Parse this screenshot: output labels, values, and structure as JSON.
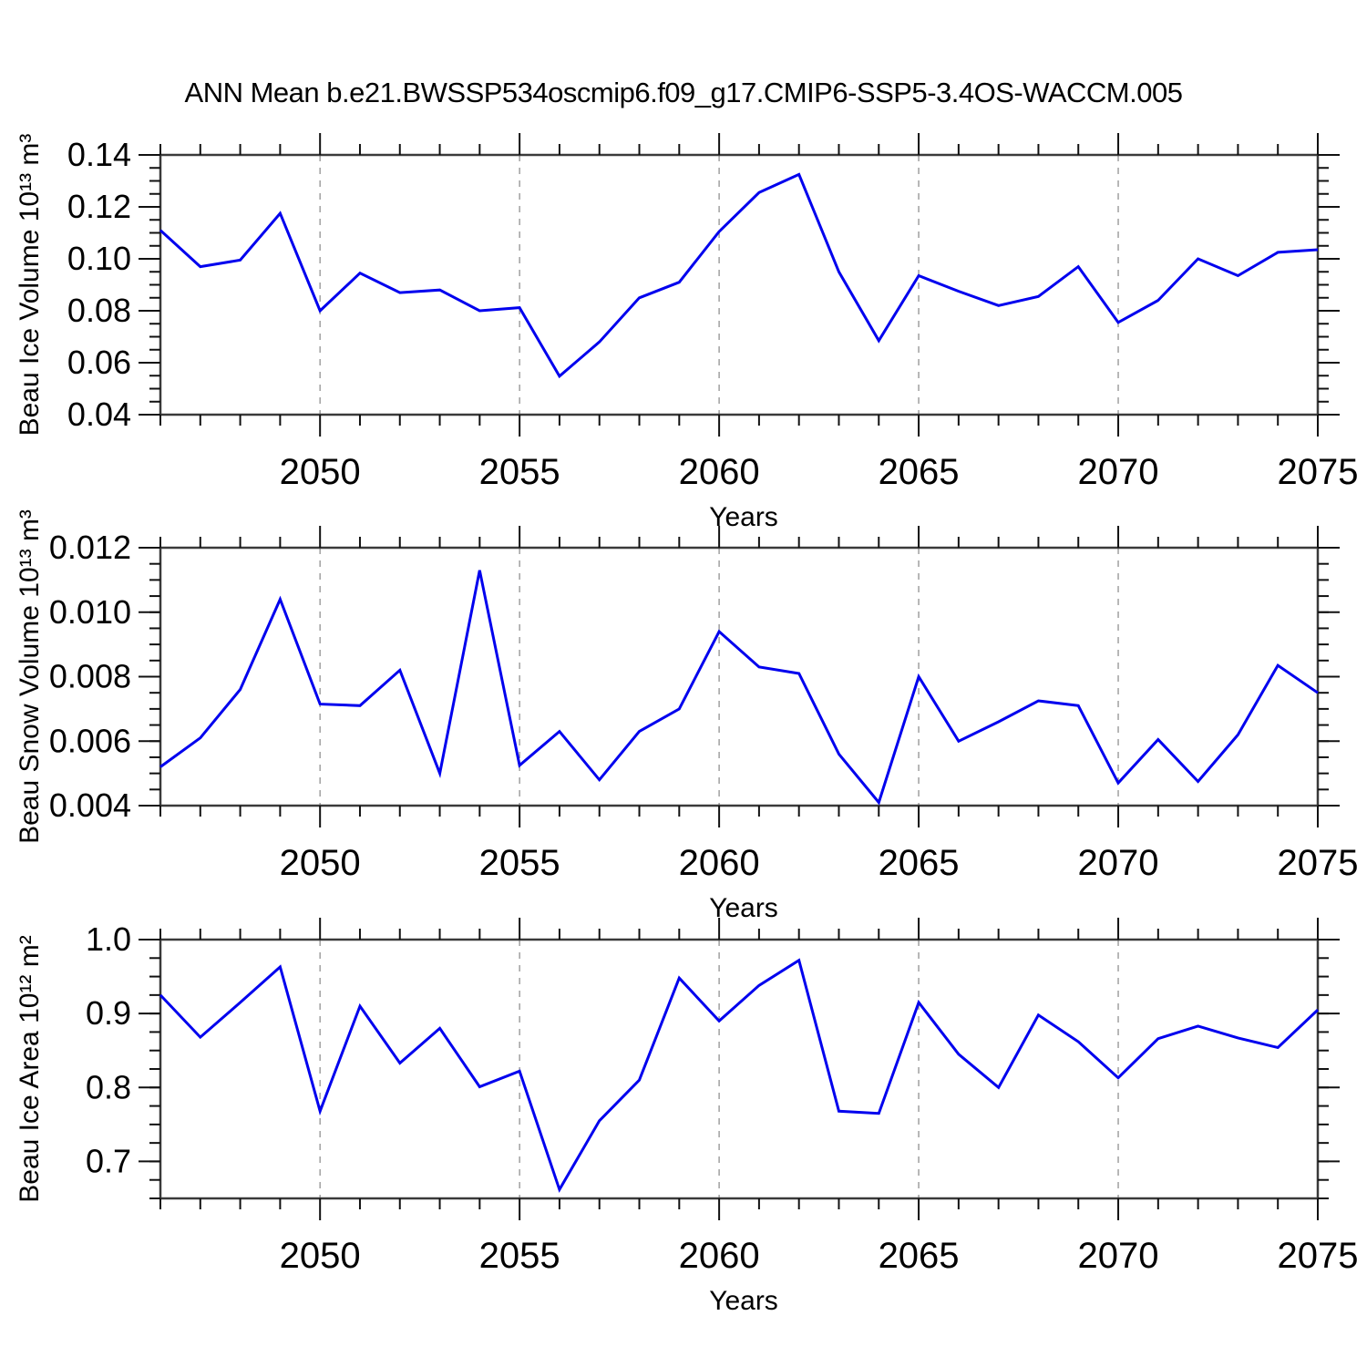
{
  "title": "ANN Mean b.e21.BWSSP534oscmip6.f09_g17.CMIP6-SSP5-3.4OS-WACCM.005",
  "chart_data": {
    "type": "line",
    "legend": "none",
    "grid": "vertical-dashed-at-major-x",
    "line_color": "#0000ee",
    "grid_color": "#999999",
    "axis_color": "#3a3a3a",
    "tick_color": "#111111",
    "text_color": "#000000",
    "years": [
      2046,
      2047,
      2048,
      2049,
      2050,
      2051,
      2052,
      2053,
      2054,
      2055,
      2056,
      2057,
      2058,
      2059,
      2060,
      2061,
      2062,
      2063,
      2064,
      2065,
      2066,
      2067,
      2068,
      2069,
      2070,
      2071,
      2072,
      2073,
      2074,
      2075
    ],
    "xticks": {
      "major": [
        2050,
        2055,
        2060,
        2065,
        2070,
        2075
      ],
      "labels": [
        "2050",
        "2055",
        "2060",
        "2065",
        "2070",
        "2075"
      ],
      "minor_step": 1
    },
    "grid_x": [
      2050,
      2055,
      2060,
      2065,
      2070
    ],
    "panels": [
      {
        "name": "beau-ice-volume",
        "ylabel": "Beau Ice Volume 10¹³ m³",
        "xlabel": "Years",
        "xlim": [
          2046,
          2075
        ],
        "ylim": [
          0.04,
          0.14
        ],
        "yticks": {
          "major": [
            0.04,
            0.06,
            0.08,
            0.1,
            0.12,
            0.14
          ],
          "labels": [
            "0.04",
            "0.06",
            "0.08",
            "0.10",
            "0.12",
            "0.14"
          ],
          "minor_step": 0.005
        },
        "values": [
          0.111,
          0.097,
          0.0995,
          0.1175,
          0.08,
          0.0945,
          0.087,
          0.088,
          0.08,
          0.0812,
          0.0548,
          0.068,
          0.085,
          0.091,
          0.1105,
          0.1255,
          0.1325,
          0.095,
          0.0685,
          0.0935,
          0.0875,
          0.082,
          0.0855,
          0.097,
          0.0755,
          0.084,
          0.1,
          0.0935,
          0.1025,
          0.1035
        ]
      },
      {
        "name": "beau-snow-volume",
        "ylabel": "Beau Snow Volume 10¹³ m³",
        "xlabel": "Years",
        "xlim": [
          2046,
          2075
        ],
        "ylim": [
          0.004,
          0.012
        ],
        "yticks": {
          "major": [
            0.004,
            0.006,
            0.008,
            0.01,
            0.012
          ],
          "labels": [
            "0.004",
            "0.006",
            "0.008",
            "0.010",
            "0.012"
          ],
          "minor_step": 0.0005
        },
        "values": [
          0.0052,
          0.0061,
          0.0076,
          0.0104,
          0.00715,
          0.0071,
          0.0082,
          0.005,
          0.0113,
          0.00525,
          0.0063,
          0.0048,
          0.0063,
          0.007,
          0.0094,
          0.0083,
          0.0081,
          0.0056,
          0.0041,
          0.008,
          0.006,
          0.0066,
          0.00725,
          0.0071,
          0.0047,
          0.00605,
          0.00475,
          0.0062,
          0.00835,
          0.0075
        ]
      },
      {
        "name": "beau-ice-area",
        "ylabel": "Beau Ice Area 10¹² m²",
        "xlabel": "Years",
        "xlim": [
          2046,
          2075
        ],
        "ylim": [
          0.65,
          1.0
        ],
        "yticks": {
          "major": [
            0.7,
            0.8,
            0.9,
            1.0
          ],
          "labels": [
            "0.7",
            "0.8",
            "0.9",
            "1.0"
          ],
          "minor_step": 0.025
        },
        "values": [
          0.925,
          0.868,
          0.915,
          0.963,
          0.768,
          0.91,
          0.833,
          0.88,
          0.801,
          0.822,
          0.662,
          0.755,
          0.81,
          0.948,
          0.89,
          0.938,
          0.972,
          0.768,
          0.765,
          0.915,
          0.845,
          0.8,
          0.898,
          0.862,
          0.813,
          0.866,
          0.883,
          0.867,
          0.854,
          0.905
        ]
      }
    ]
  }
}
